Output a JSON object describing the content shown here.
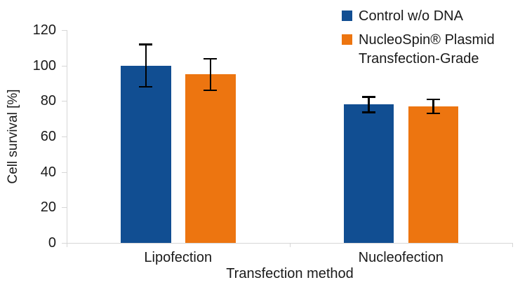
{
  "chart_data": {
    "type": "bar",
    "categories": [
      "Lipofection",
      "Nucleofection"
    ],
    "series": [
      {
        "name": "Control w/o DNA",
        "color": "#114e92",
        "values": [
          100,
          78
        ],
        "errors": [
          12,
          4.5
        ]
      },
      {
        "name": "NucleoSpin® Plasmid Transfection-Grade",
        "color": "#ed7510",
        "values": [
          95,
          77
        ],
        "errors": [
          9,
          4
        ]
      }
    ],
    "title": "",
    "xlabel": "Transfection method",
    "ylabel": "Cell survival [%]",
    "ylim": [
      0,
      120
    ],
    "ytick_step": 20,
    "grid": false,
    "legend_position": "top-right",
    "errorbar_color": "#000000",
    "axis_line_color": "#d6d6d6"
  },
  "axes": {
    "x_title": "Transfection method",
    "y_title": "Cell survival [%]",
    "y_ticks": [
      0,
      20,
      40,
      60,
      80,
      100,
      120
    ]
  },
  "legend": {
    "items": [
      {
        "label": "Control w/o DNA",
        "color": "#114e92"
      },
      {
        "label": "NucleoSpin® Plasmid Transfection-Grade",
        "color": "#ed7510"
      }
    ]
  }
}
